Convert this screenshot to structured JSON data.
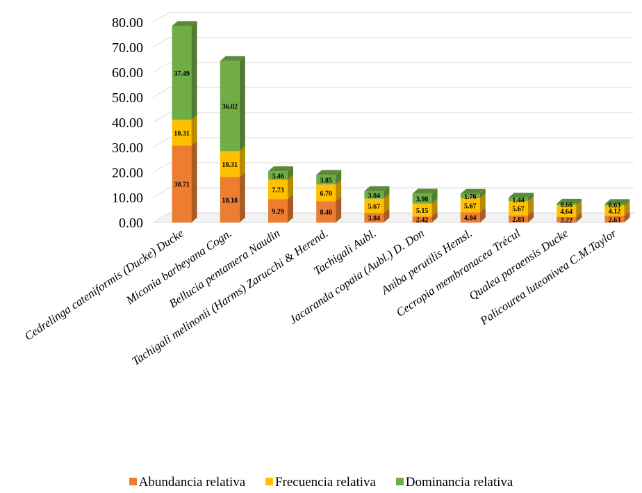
{
  "chart_data": {
    "type": "bar",
    "stacked": true,
    "three_d": true,
    "categories": [
      "Cedrelinga cateniformis (Ducke) Ducke",
      "Miconia barbeyana Cogn.",
      "Bellucia pentamera Naudin",
      "Tachigali melinonii (Harms) Zarucchi & Herend.",
      "Tachigali Aubl.",
      "Jacaranda copaia (Aubl.) D. Don",
      "Aniba perutilis Hemsl.",
      "Cecropia membranacea Trécul",
      "Qualea paraensis Ducke",
      "Palicourea luteonivea C.M.Taylor"
    ],
    "series": [
      {
        "name": "Abundancia relativa",
        "color": "#ED7D31",
        "values": [
          30.71,
          18.18,
          9.29,
          8.48,
          3.84,
          2.42,
          4.04,
          2.83,
          2.22,
          2.63
        ],
        "labels": [
          "30.71",
          "18.18",
          "9.29",
          "8.48",
          "3.84",
          "2.42",
          "4.04",
          "2.83",
          "2.22",
          "2.63"
        ]
      },
      {
        "name": "Frecuencia relativa",
        "color": "#FFC000",
        "values": [
          10.31,
          10.31,
          7.73,
          6.7,
          5.67,
          5.15,
          5.67,
          5.67,
          4.64,
          4.12
        ],
        "labels": [
          "10.31",
          "10.31",
          "7.73",
          "6.70",
          "5.67",
          "5.15",
          "5.67",
          "5.67",
          "4.64",
          "4.12"
        ]
      },
      {
        "name": "Dominancia relativa",
        "color": "#70AD47",
        "values": [
          37.49,
          36.02,
          3.46,
          3.85,
          3.04,
          3.98,
          1.76,
          1.44,
          0.66,
          0.63
        ],
        "labels": [
          "37.49",
          "36.02",
          "3.46",
          "3.85",
          "3.04",
          "3.98",
          "1.76",
          "1.44",
          "0.66",
          "0.63"
        ]
      }
    ],
    "y_ticks": [
      "0.00",
      "10.00",
      "20.00",
      "30.00",
      "40.00",
      "50.00",
      "60.00",
      "70.00",
      "80.00"
    ],
    "ylim": [
      0,
      80
    ],
    "grid": true,
    "legend_position": "bottom"
  }
}
